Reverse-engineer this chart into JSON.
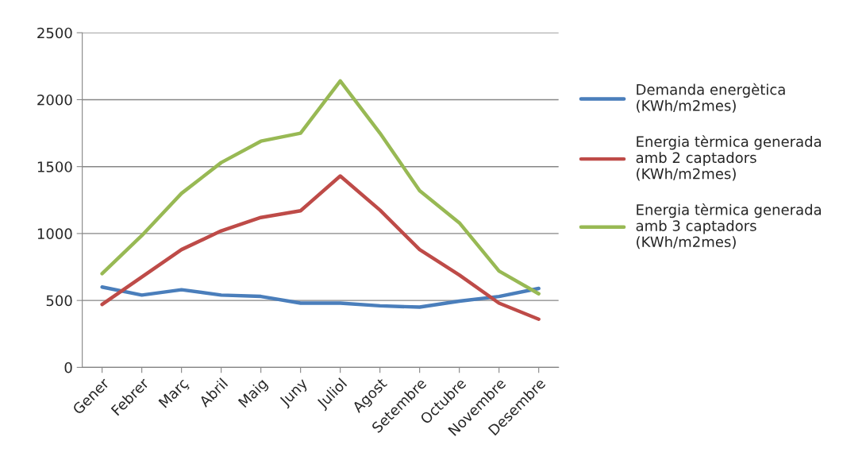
{
  "chart_data": {
    "type": "line",
    "categories": [
      "Gener",
      "Febrer",
      "Març",
      "Abril",
      "Maig",
      "Juny",
      "Juliol",
      "Agost",
      "Setembre",
      "Octubre",
      "Novembre",
      "Desembre"
    ],
    "series": [
      {
        "name": "Demanda energètica (KWh/m2mes)",
        "color": "#4a7ebb",
        "values": [
          600,
          540,
          580,
          540,
          530,
          480,
          480,
          460,
          450,
          495,
          530,
          590
        ]
      },
      {
        "name": "Energia tèrmica generada amb 2 captadors (KWh/m2mes)",
        "color": "#be4b48",
        "values": [
          470,
          675,
          880,
          1020,
          1120,
          1170,
          1430,
          1175,
          880,
          690,
          480,
          360
        ]
      },
      {
        "name": "Energia tèrmica generada amb 3 captadors (KWh/m2mes)",
        "color": "#98b954",
        "values": [
          700,
          985,
          1300,
          1530,
          1690,
          1750,
          2140,
          1750,
          1320,
          1080,
          720,
          550
        ]
      }
    ],
    "ylim": [
      0,
      2500
    ],
    "yticks": [
      0,
      500,
      1000,
      1500,
      2000,
      2500
    ],
    "grid": "y",
    "legend": "right",
    "marker": "none",
    "line_style": "solid"
  }
}
